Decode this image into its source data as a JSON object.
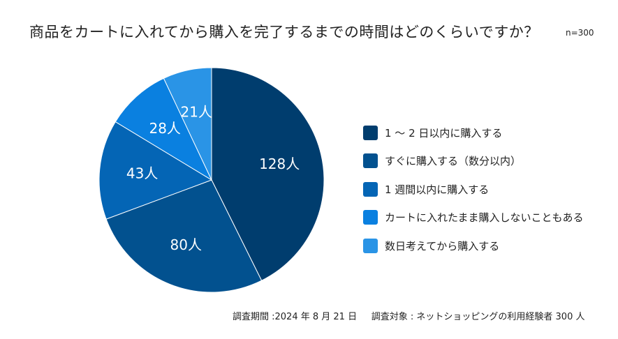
{
  "chart_data": {
    "type": "pie",
    "title": "商品をカートに入れてから購入を完了するまでの時間はどのくらいですか？",
    "n_label": "n=300",
    "slices": [
      {
        "label": "1 ～ 2 日以内に購入する",
        "value": 128,
        "data_label": "128人",
        "color": "#003d6e"
      },
      {
        "label": "すぐに購入する（数分以内）",
        "value": 80,
        "data_label": "80人",
        "color": "#02518f"
      },
      {
        "label": "1 週間以内に購入する",
        "value": 43,
        "data_label": "43人",
        "color": "#0465b5"
      },
      {
        "label": "カートに入れたまま購入しないこともある",
        "value": 28,
        "data_label": "28人",
        "color": "#0a80e0"
      },
      {
        "label": "数日考えてから購入する",
        "value": 21,
        "data_label": "21人",
        "color": "#2a94e6"
      }
    ],
    "legend_position": "right"
  },
  "footer": {
    "period": "調査期間 :2024 年 8 月 21 日",
    "target": "調査対象 : ネットショッピングの利用経験者 300 人"
  }
}
